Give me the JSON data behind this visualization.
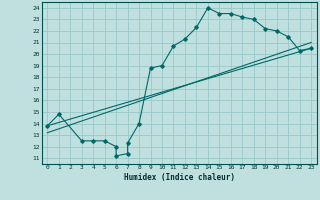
{
  "title": "",
  "xlabel": "Humidex (Indice chaleur)",
  "ylabel": "",
  "bg_color": "#c0e0e0",
  "grid_color": "#98c8c8",
  "line_color": "#006868",
  "xlim": [
    -0.5,
    23.5
  ],
  "ylim": [
    10.5,
    24.5
  ],
  "xticks": [
    0,
    1,
    2,
    3,
    4,
    5,
    6,
    7,
    8,
    9,
    10,
    11,
    12,
    13,
    14,
    15,
    16,
    17,
    18,
    19,
    20,
    21,
    22,
    23
  ],
  "yticks": [
    11,
    12,
    13,
    14,
    15,
    16,
    17,
    18,
    19,
    20,
    21,
    22,
    23,
    24
  ],
  "curve_x": [
    0,
    1,
    3,
    4,
    5,
    6,
    6,
    7,
    7,
    8,
    9,
    10,
    11,
    12,
    13,
    14,
    15,
    16,
    17,
    18,
    19,
    20,
    21,
    22,
    23
  ],
  "curve_y": [
    13.8,
    14.8,
    12.5,
    12.5,
    12.5,
    12.0,
    11.2,
    11.4,
    12.3,
    14.0,
    18.8,
    19.0,
    20.7,
    21.3,
    22.3,
    24.0,
    23.5,
    23.5,
    23.2,
    23.0,
    22.2,
    22.0,
    21.5,
    20.3,
    20.5
  ],
  "line1_x": [
    0,
    23
  ],
  "line1_y": [
    13.2,
    21.0
  ],
  "line2_x": [
    0,
    23
  ],
  "line2_y": [
    13.8,
    20.5
  ]
}
